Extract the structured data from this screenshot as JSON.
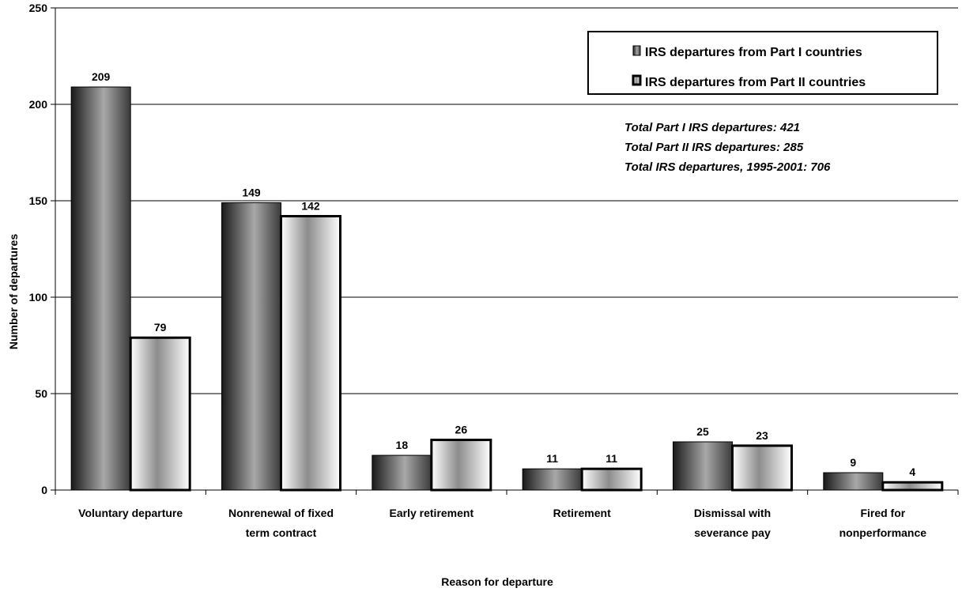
{
  "chart_data": {
    "type": "bar",
    "xlabel": "Reason for departure",
    "ylabel": "Number of departures",
    "ylim": [
      0,
      250
    ],
    "yticks": [
      0,
      50,
      100,
      150,
      200,
      250
    ],
    "grid": true,
    "legend_position": "top-right",
    "categories": [
      [
        "Voluntary departure"
      ],
      [
        "Nonrenewal of fixed",
        "term contract"
      ],
      [
        "Early retirement"
      ],
      [
        "Retirement"
      ],
      [
        "Dismissal with",
        "severance pay"
      ],
      [
        "Fired for",
        "nonperformance"
      ]
    ],
    "series": [
      {
        "name": "IRS departures from Part I countries",
        "values": [
          209,
          149,
          18,
          11,
          25,
          9
        ],
        "style": "dark-gradient",
        "border": "thin"
      },
      {
        "name": "IRS departures from Part II countries",
        "values": [
          79,
          142,
          26,
          11,
          23,
          4
        ],
        "style": "light-gradient",
        "border": "thick"
      }
    ],
    "annotations": [
      "Total Part I IRS departures: 421",
      "Total Part II IRS departures: 285",
      "Total IRS departures, 1995-2001: 706"
    ]
  }
}
